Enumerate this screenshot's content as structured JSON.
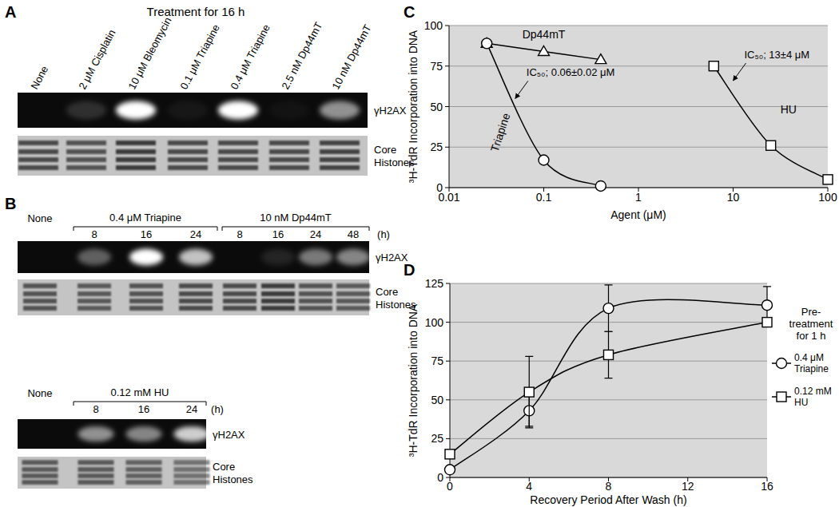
{
  "blots": [
    {
      "panel_label": "A",
      "title": "Treatment for 16 h",
      "lanes": [
        "None",
        "2 μM Cisplatin",
        "10 μM Bleomycin",
        "0.1 μM Triapine",
        "0.4 μM Triapine",
        "2.5 nM Dp44mT",
        "10 nM Dp44mT"
      ],
      "rows": [
        {
          "name": "γH2AX",
          "values": [
            0,
            0.15,
            1,
            0.05,
            1,
            0.03,
            0.55
          ]
        },
        {
          "name": "Core Histones",
          "values": [
            0.8,
            0.75,
            0.9,
            0.8,
            0.8,
            0.8,
            0.85
          ]
        }
      ]
    },
    {
      "panel_label": "B",
      "control": "None",
      "groups": [
        {
          "label": "0.4 μM Triapine",
          "times": [
            8,
            16,
            24
          ]
        },
        {
          "label": "10 nM Dp44mT",
          "times": [
            8,
            16,
            24,
            48
          ]
        }
      ],
      "time_unit": "(h)",
      "rows": [
        {
          "name": "γH2AX",
          "values": [
            0,
            0.35,
            1,
            0.75,
            0,
            0.1,
            0.45,
            0.5
          ]
        },
        {
          "name": "Core Histones",
          "values": [
            0.75,
            0.7,
            0.75,
            0.8,
            0.8,
            0.9,
            0.75,
            0.7
          ]
        }
      ]
    },
    {
      "control": "None",
      "groups": [
        {
          "label": "0.12 mM HU",
          "times": [
            8,
            16,
            24
          ]
        }
      ],
      "time_unit": "(h)",
      "rows": [
        {
          "name": "γH2AX",
          "values": [
            0,
            0.55,
            0.5,
            0.8
          ]
        },
        {
          "name": "Core Histones",
          "values": [
            0.7,
            0.7,
            0.65,
            0.55
          ]
        }
      ]
    }
  ],
  "chart_data": [
    {
      "type": "line",
      "panel_label": "C",
      "x_label": "Agent (μM)",
      "y_label": "³H-TdR Incorporation into DNA",
      "log": "x",
      "xlim": [
        0.01,
        100
      ],
      "xticks": [
        0.01,
        0.1,
        1,
        10,
        100
      ],
      "ylim": [
        0,
        100
      ],
      "yticks": [
        0,
        25,
        50,
        75,
        100
      ],
      "grid": true,
      "series": [
        {
          "name": "Dp44mT",
          "color": "#000000",
          "marker": "triangle",
          "x": [
            0.025,
            0.1,
            0.4
          ],
          "values": [
            89,
            84,
            79
          ]
        },
        {
          "name": "Triapine",
          "color": "#000000",
          "marker": "circle",
          "x": [
            0.025,
            0.1,
            0.4
          ],
          "values": [
            89,
            17,
            1
          ]
        },
        {
          "name": "HU",
          "color": "#000000",
          "marker": "square",
          "x": [
            6.25,
            25,
            100
          ],
          "values": [
            75,
            26,
            5
          ]
        }
      ],
      "annotations": [
        {
          "text": "IC₅₀; 0.06±0.02 μM",
          "x": 0.05,
          "y": 55
        },
        {
          "text": "IC₅₀; 13±4 μM",
          "x": 10,
          "y": 66
        }
      ]
    },
    {
      "type": "line",
      "panel_label": "D",
      "x_label": "Recovery Period After Wash (h)",
      "y_label": "³H-TdR Incorporation into DNA",
      "xlim": [
        0,
        16
      ],
      "xticks": [
        0,
        4,
        8,
        12,
        16
      ],
      "ylim": [
        0,
        125
      ],
      "yticks": [
        0,
        25,
        50,
        75,
        100,
        125
      ],
      "grid": true,
      "legend": "right",
      "legend_title": [
        "Pre-",
        "treatment",
        "for 1 h"
      ],
      "series": [
        {
          "name": "0.4 μM Triapine",
          "color": "#000000",
          "marker": "circle",
          "x": [
            0,
            4,
            8,
            16
          ],
          "values": [
            5,
            43,
            109,
            111
          ],
          "errors": [
            0,
            10,
            15,
            12
          ]
        },
        {
          "name": "0.12 mM HU",
          "color": "#000000",
          "marker": "square",
          "x": [
            0,
            4,
            8,
            16
          ],
          "values": [
            15,
            55,
            79,
            100
          ],
          "errors": [
            0,
            23,
            15,
            0
          ]
        }
      ]
    }
  ]
}
